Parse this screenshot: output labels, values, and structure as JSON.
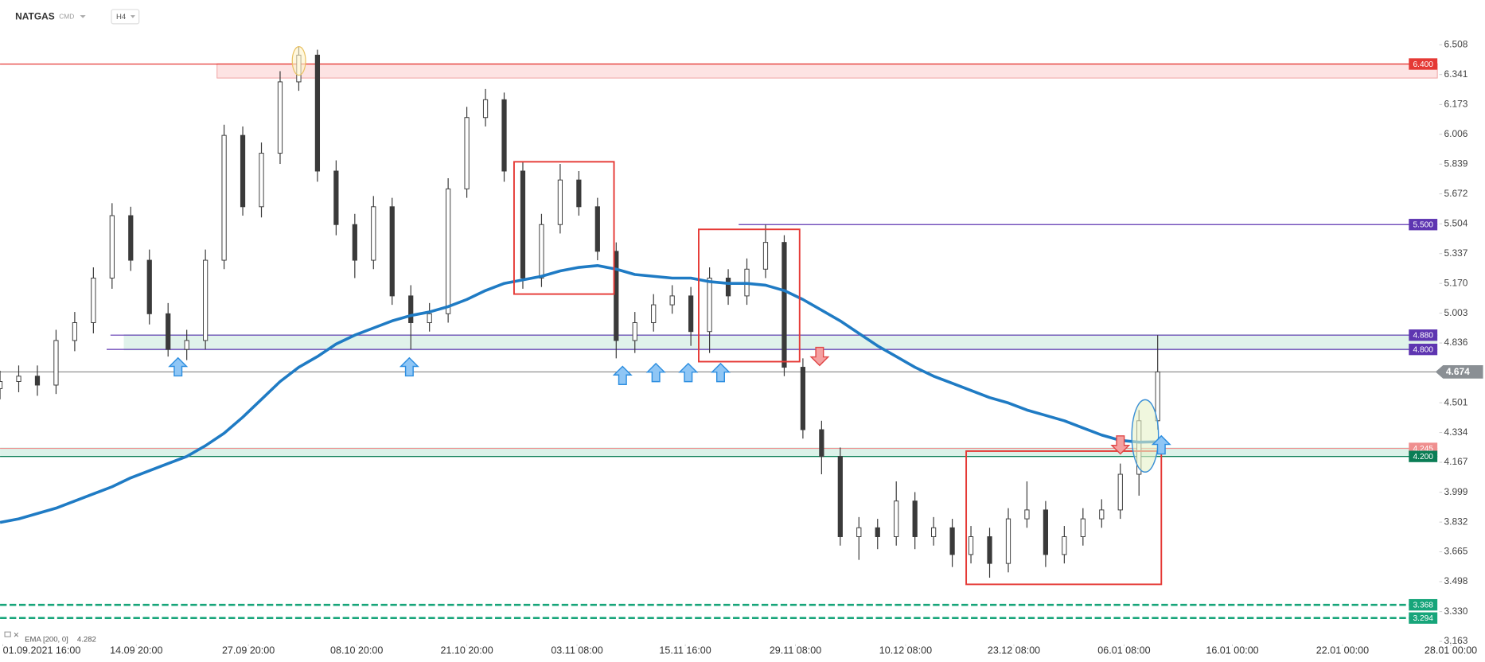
{
  "header": {
    "symbol": "NATGAS",
    "market": "CMD",
    "interval": "H4"
  },
  "chart_data": {
    "type": "candlestick",
    "x": [
      0,
      1,
      2,
      3,
      4,
      5,
      6,
      7,
      8,
      9,
      10,
      11,
      12,
      13,
      14,
      15,
      16,
      17,
      18,
      19,
      20,
      21,
      22,
      23,
      24,
      25,
      26,
      27,
      28,
      29,
      30,
      31,
      32,
      33,
      34,
      35,
      36,
      37,
      38,
      39,
      40,
      41,
      42,
      43,
      44,
      45,
      46,
      47,
      48,
      49,
      50,
      51,
      52,
      53,
      54,
      55,
      56,
      57,
      58,
      59,
      60,
      61,
      62
    ],
    "open": [
      4.58,
      4.62,
      4.65,
      4.6,
      4.85,
      4.95,
      5.2,
      5.55,
      5.3,
      5.0,
      4.8,
      4.85,
      5.3,
      6.0,
      5.6,
      5.9,
      6.3,
      6.45,
      5.8,
      5.5,
      5.3,
      5.6,
      5.1,
      4.95,
      5.0,
      5.7,
      6.1,
      6.2,
      5.8,
      5.2,
      5.5,
      5.75,
      5.6,
      5.35,
      4.85,
      4.95,
      5.05,
      5.1,
      4.9,
      5.2,
      5.1,
      5.25,
      5.4,
      4.7,
      4.35,
      4.2,
      3.75,
      3.8,
      3.75,
      3.95,
      3.75,
      3.8,
      3.65,
      3.75,
      3.6,
      3.85,
      3.9,
      3.65,
      3.75,
      3.85,
      3.9,
      4.1,
      4.4
    ],
    "high": [
      4.68,
      4.71,
      4.71,
      4.91,
      5.01,
      5.26,
      5.62,
      5.6,
      5.36,
      5.06,
      4.91,
      5.36,
      6.06,
      6.05,
      5.96,
      6.36,
      6.5,
      6.48,
      5.86,
      5.56,
      5.66,
      5.65,
      5.16,
      5.06,
      5.76,
      6.16,
      6.26,
      6.24,
      5.85,
      5.56,
      5.84,
      5.8,
      5.65,
      5.4,
      5.01,
      5.11,
      5.16,
      5.15,
      5.26,
      5.25,
      5.31,
      5.5,
      5.44,
      4.75,
      4.4,
      4.25,
      3.86,
      3.85,
      4.06,
      4.0,
      3.86,
      3.85,
      3.81,
      3.8,
      3.91,
      4.06,
      3.95,
      3.81,
      3.91,
      3.96,
      4.16,
      4.46,
      4.88
    ],
    "low": [
      4.52,
      4.56,
      4.54,
      4.55,
      4.79,
      4.89,
      5.14,
      5.24,
      4.94,
      4.76,
      4.74,
      4.8,
      5.25,
      5.55,
      5.54,
      5.84,
      6.25,
      5.74,
      5.44,
      5.2,
      5.25,
      5.05,
      4.8,
      4.9,
      4.95,
      5.65,
      6.05,
      5.74,
      5.14,
      5.15,
      5.45,
      5.55,
      5.3,
      4.75,
      4.78,
      4.9,
      5.0,
      4.82,
      4.78,
      5.05,
      5.05,
      5.2,
      4.65,
      4.3,
      4.1,
      3.7,
      3.62,
      3.68,
      3.7,
      3.68,
      3.7,
      3.58,
      3.6,
      3.52,
      3.55,
      3.8,
      3.58,
      3.6,
      3.7,
      3.8,
      3.85,
      3.98,
      4.35
    ],
    "close": [
      4.62,
      4.65,
      4.6,
      4.85,
      4.95,
      5.2,
      5.55,
      5.3,
      5.0,
      4.8,
      4.85,
      5.3,
      6.0,
      5.6,
      5.9,
      6.3,
      6.45,
      5.8,
      5.5,
      5.3,
      5.6,
      5.1,
      4.95,
      5.0,
      5.7,
      6.1,
      6.2,
      5.8,
      5.2,
      5.5,
      5.75,
      5.6,
      5.35,
      4.85,
      4.95,
      5.05,
      5.1,
      4.9,
      5.2,
      5.1,
      5.25,
      5.4,
      4.7,
      4.35,
      4.2,
      3.75,
      3.8,
      3.75,
      3.95,
      3.75,
      3.8,
      3.65,
      3.75,
      3.6,
      3.85,
      3.9,
      3.65,
      3.75,
      3.85,
      3.9,
      4.1,
      4.4,
      4.674
    ],
    "color_up": "#ffffff",
    "color_down": "#3a3a3a",
    "ema": {
      "name": "EMA [200, 0]",
      "color": "#1f7bc4",
      "values": [
        3.83,
        3.85,
        3.88,
        3.91,
        3.95,
        3.99,
        4.03,
        4.08,
        4.12,
        4.16,
        4.2,
        4.26,
        4.33,
        4.42,
        4.52,
        4.62,
        4.7,
        4.76,
        4.83,
        4.88,
        4.92,
        4.96,
        4.99,
        5.01,
        5.04,
        5.08,
        5.13,
        5.17,
        5.19,
        5.21,
        5.24,
        5.26,
        5.27,
        5.25,
        5.22,
        5.21,
        5.2,
        5.2,
        5.18,
        5.17,
        5.17,
        5.16,
        5.13,
        5.08,
        5.02,
        4.96,
        4.89,
        4.82,
        4.76,
        4.7,
        4.65,
        4.61,
        4.57,
        4.53,
        4.5,
        4.46,
        4.43,
        4.4,
        4.36,
        4.32,
        4.29,
        4.28,
        4.282
      ]
    },
    "xlim": [
      0,
      78
    ],
    "xticks": [
      {
        "value": 0.15,
        "label": "01.09.2021 16:00"
      },
      {
        "value": 7.3,
        "label": "14.09 20:00"
      },
      {
        "value": 13.3,
        "label": "27.09 20:00"
      },
      {
        "value": 19.1,
        "label": "08.10 20:00"
      },
      {
        "value": 25,
        "label": "21.10 20:00"
      },
      {
        "value": 30.9,
        "label": "03.11 08:00"
      },
      {
        "value": 36.7,
        "label": "15.11 16:00"
      },
      {
        "value": 42.6,
        "label": "29.11 08:00"
      },
      {
        "value": 48.5,
        "label": "10.12 08:00"
      },
      {
        "value": 54.3,
        "label": "23.12 08:00"
      },
      {
        "value": 60.2,
        "label": "06.01 08:00"
      },
      {
        "value": 66,
        "label": "16.01 00:00"
      },
      {
        "value": 71.9,
        "label": "22.01 00:00"
      },
      {
        "value": 77.7,
        "label": "28.01 00:00"
      }
    ],
    "ylim": [
      3.152,
      6.599
    ],
    "yticks": [
      6.508,
      6.341,
      6.173,
      6.006,
      5.839,
      5.672,
      5.504,
      5.337,
      {
        "value": 5.17,
        "label": "5.170"
      },
      5.003,
      4.836,
      4.501,
      4.334,
      4.167,
      3.999,
      3.832,
      3.665,
      3.498,
      {
        "value": 3.33,
        "label": "3.330"
      },
      3.163
    ],
    "levels": [
      {
        "value": 6.4,
        "label": "6.400",
        "color": "#e53935",
        "dashed": false
      },
      {
        "value": 5.5,
        "label": "5.500",
        "color": "#5e35b1",
        "dashed": false
      },
      {
        "value": 4.88,
        "label": "4.880",
        "color": "#5e35b1",
        "dashed": false
      },
      {
        "value": 4.8,
        "label": "4.800",
        "color": "#5e35b1",
        "dashed": false
      },
      {
        "value": 4.245,
        "label": "4.245",
        "color": "#ef8f8f",
        "dashed": false
      },
      {
        "value": 4.2,
        "label": "4.200",
        "color": "#0a7d55",
        "dashed": false
      },
      {
        "value": 3.368,
        "label": "3.368",
        "color": "#17a57a",
        "dashed": true
      },
      {
        "value": 3.294,
        "label": "3.294",
        "color": "#17a57a",
        "dashed": true
      }
    ]
  }
}
